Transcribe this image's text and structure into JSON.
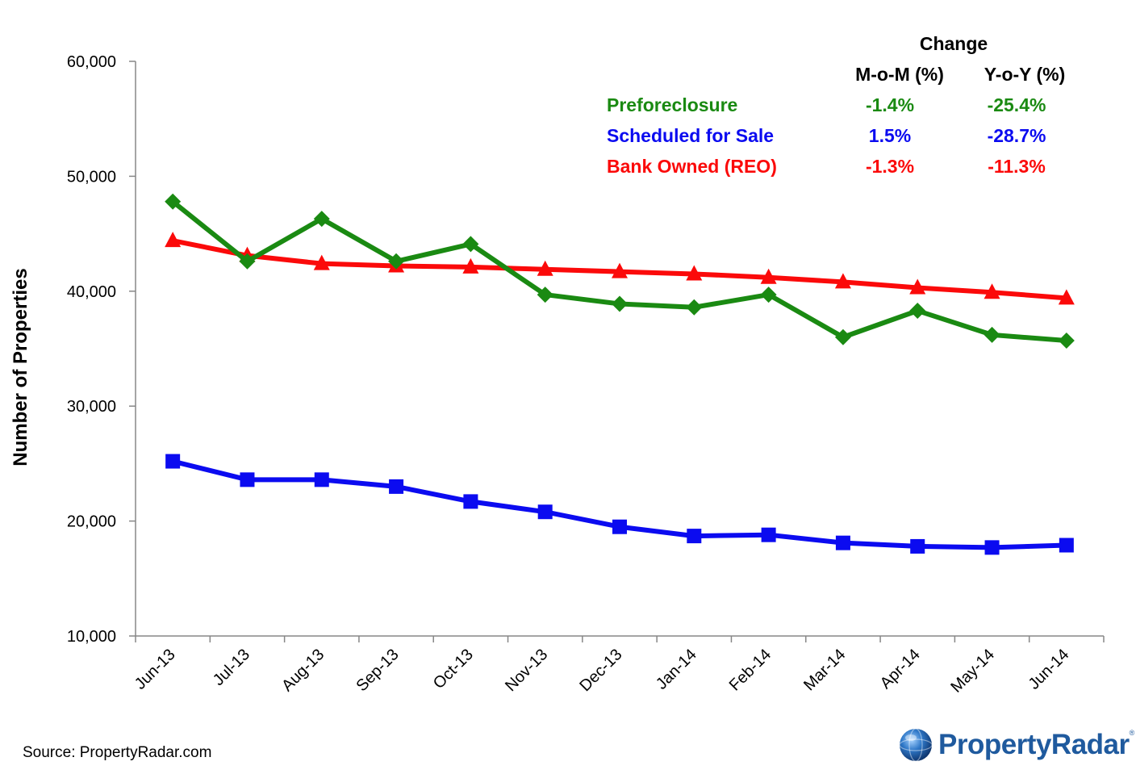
{
  "chart_data": {
    "type": "line",
    "title": "",
    "xlabel": "",
    "ylabel": "Number of Properties",
    "ylim": [
      10000,
      60000
    ],
    "yticks": [
      10000,
      20000,
      30000,
      40000,
      50000,
      60000
    ],
    "ytick_labels": [
      "10,000",
      "20,000",
      "30,000",
      "40,000",
      "50,000",
      "60,000"
    ],
    "categories": [
      "Jun-13",
      "Jul-13",
      "Aug-13",
      "Sep-13",
      "Oct-13",
      "Nov-13",
      "Dec-13",
      "Jan-14",
      "Feb-14",
      "Mar-14",
      "Apr-14",
      "May-14",
      "Jun-14"
    ],
    "series": [
      {
        "name": "Preforeclosure",
        "color": "#1a8a12",
        "marker": "diamond",
        "values": [
          47800,
          42600,
          46300,
          42600,
          44100,
          39700,
          38900,
          38600,
          39700,
          36000,
          38300,
          36200,
          35700
        ]
      },
      {
        "name": "Scheduled for Sale",
        "color": "#0b0bf0",
        "marker": "square",
        "values": [
          25200,
          23600,
          23600,
          23000,
          21700,
          20800,
          19500,
          18700,
          18800,
          18100,
          17800,
          17700,
          17900
        ]
      },
      {
        "name": "Bank Owned (REO)",
        "color": "#fb0a0a",
        "marker": "triangle",
        "values": [
          44400,
          43100,
          42400,
          42200,
          42100,
          41900,
          41700,
          41500,
          41200,
          40800,
          40300,
          39900,
          39400
        ]
      }
    ]
  },
  "change_table": {
    "title": "Change",
    "col_mom": "M-o-M (%)",
    "col_yoy": "Y-o-Y (%)",
    "rows": [
      {
        "label": "Preforeclosure",
        "mom": "-1.4%",
        "yoy": "-25.4%",
        "color": "#1a8a12"
      },
      {
        "label": "Scheduled for Sale",
        "mom": "1.5%",
        "yoy": "-28.7%",
        "color": "#0b0bf0"
      },
      {
        "label": "Bank Owned (REO)",
        "mom": "-1.3%",
        "yoy": "-11.3%",
        "color": "#fb0a0a"
      }
    ]
  },
  "footer": {
    "source": "Source: PropertyRadar.com",
    "brand": "PropertyRadar",
    "brand_mark": "®"
  }
}
